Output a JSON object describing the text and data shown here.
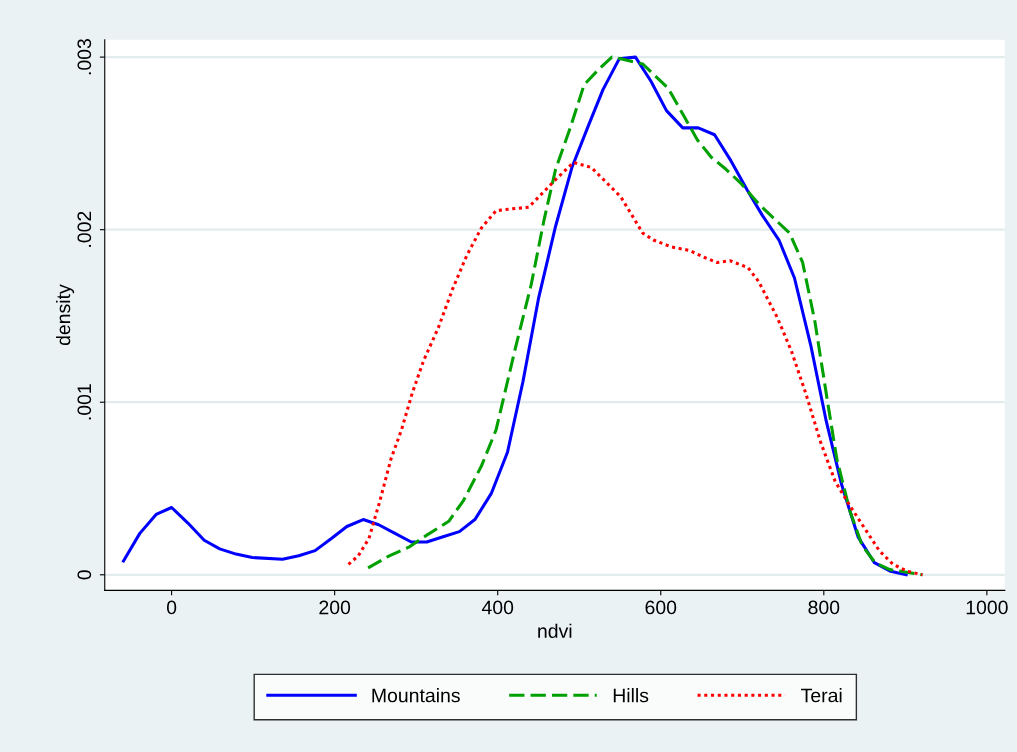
{
  "chart_data": {
    "type": "line",
    "xlabel": "ndvi",
    "ylabel": "density",
    "xlim": [
      -82,
      1022
    ],
    "ylim": [
      -9e-05,
      0.0031
    ],
    "xticks": [
      0,
      200,
      400,
      600,
      800,
      1000
    ],
    "yticks": [
      {
        "value": 0,
        "label": "0"
      },
      {
        "value": 0.001,
        "label": ".001"
      },
      {
        "value": 0.002,
        "label": ".002"
      },
      {
        "value": 0.003,
        "label": ".003"
      }
    ],
    "grid": "y",
    "legend": "bottom",
    "series": [
      {
        "name": "Mountains",
        "color": "#0000ff",
        "line_style": "solid",
        "x": [
          -59,
          -39,
          -19,
          0,
          20,
          40,
          59,
          79,
          99,
          136,
          156,
          176,
          196,
          215,
          235,
          254,
          274,
          294,
          313,
          333,
          353,
          372,
          392,
          412,
          431,
          450,
          471,
          491,
          511,
          529,
          549,
          569,
          588,
          607,
          627,
          646,
          666,
          686,
          706,
          725,
          745,
          764,
          784,
          803,
          822,
          842,
          862,
          882,
          901
        ],
        "values": [
          8e-05,
          0.00024,
          0.00035,
          0.00039,
          0.0003,
          0.0002,
          0.00015,
          0.00012,
          0.0001,
          9e-05,
          0.00011,
          0.00014,
          0.00021,
          0.00028,
          0.00032,
          0.00029,
          0.00024,
          0.00019,
          0.00019,
          0.00022,
          0.00025,
          0.00032,
          0.00047,
          0.00071,
          0.00112,
          0.0016,
          0.00202,
          0.00236,
          0.0026,
          0.00281,
          0.00299,
          0.003,
          0.00286,
          0.00269,
          0.00259,
          0.00259,
          0.00255,
          0.0024,
          0.00223,
          0.00208,
          0.00194,
          0.00172,
          0.00133,
          0.00089,
          0.00052,
          0.00022,
          7e-05,
          2e-05,
          0
        ]
      },
      {
        "name": "Hills",
        "color": "#00a000",
        "line_style": "dashed",
        "x": [
          241,
          267,
          291,
          313,
          340,
          358,
          380,
          398,
          421,
          441,
          457,
          471,
          489,
          506,
          524,
          540,
          551,
          578,
          609,
          627,
          645,
          662,
          680,
          698,
          720,
          740,
          758,
          774,
          789,
          803,
          816,
          832,
          847,
          863,
          881,
          921
        ],
        "values": [
          4e-05,
          0.00011,
          0.00016,
          0.00023,
          0.00031,
          0.00043,
          0.00063,
          0.00084,
          0.0013,
          0.00168,
          0.00206,
          0.00235,
          0.00259,
          0.00284,
          0.00293,
          0.003,
          0.00299,
          0.00296,
          0.00282,
          0.00267,
          0.00252,
          0.00242,
          0.00235,
          0.00227,
          0.00215,
          0.00206,
          0.00198,
          0.00181,
          0.00147,
          0.00105,
          0.00067,
          0.00037,
          0.00017,
          7e-05,
          3e-05,
          0
        ]
      },
      {
        "name": "Terai",
        "color": "#ff0000",
        "line_style": "dotted",
        "x": [
          217,
          229,
          242,
          255,
          269,
          282,
          295,
          309,
          327,
          345,
          362,
          380,
          398,
          416,
          438,
          471,
          493,
          515,
          551,
          578,
          591,
          613,
          635,
          653,
          669,
          685,
          707,
          720,
          743,
          760,
          778,
          796,
          814,
          832,
          850,
          868,
          885,
          903,
          921
        ],
        "values": [
          6e-05,
          0.00011,
          0.00021,
          0.00042,
          0.00067,
          0.00084,
          0.00105,
          0.00124,
          0.00143,
          0.00166,
          0.00185,
          0.00201,
          0.00211,
          0.00212,
          0.00213,
          0.00229,
          0.00239,
          0.00236,
          0.00219,
          0.00198,
          0.00194,
          0.0019,
          0.00188,
          0.00184,
          0.00181,
          0.00182,
          0.00178,
          0.0017,
          0.00149,
          0.0013,
          0.00105,
          0.00077,
          0.00054,
          0.0004,
          0.00027,
          0.00014,
          6e-05,
          2e-05,
          0
        ]
      }
    ]
  }
}
